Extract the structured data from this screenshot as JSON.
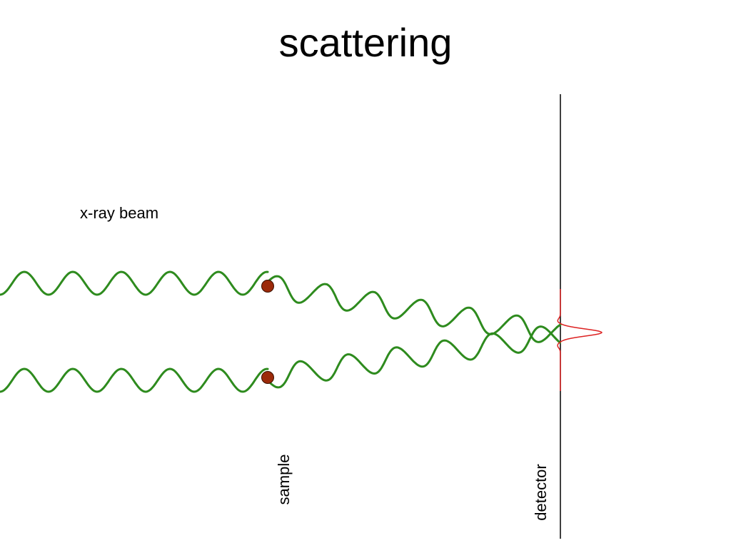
{
  "title": "scattering",
  "labels": {
    "beam": "x-ray beam",
    "sample": "sample",
    "detector": "detector"
  },
  "colors": {
    "wave": "#2e8b1e",
    "atom": "#9c2a0a",
    "detector_line": "#000000",
    "intensity_peak": "#dd2222"
  }
}
